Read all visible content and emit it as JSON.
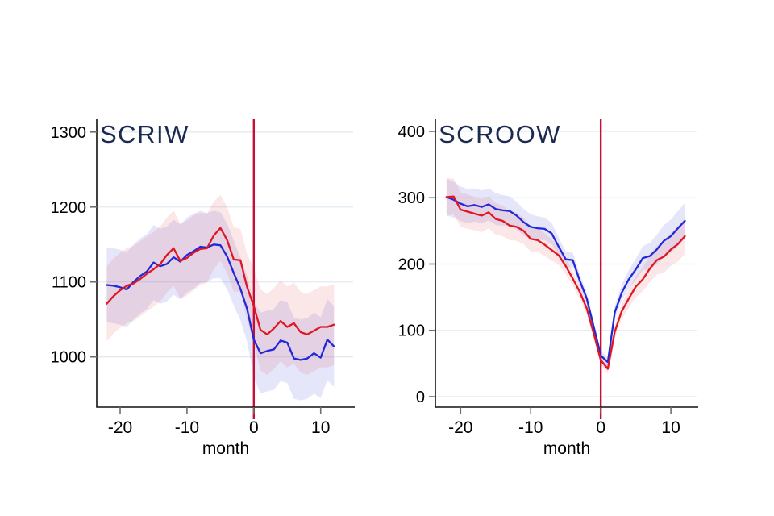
{
  "figure": {
    "background": "#ffffff",
    "axis_color": "#101010",
    "tick_color": "#6f6f6f",
    "label_color": "#000000"
  },
  "chart_data": [
    {
      "id": "scriw",
      "type": "line",
      "title": "SCRIW",
      "title_color": "#1c2951",
      "xlabel": "month",
      "grid": true,
      "grid_color": "#e2ebf2",
      "x": [
        -22,
        -21,
        -20,
        -19,
        -18,
        -17,
        -16,
        -15,
        -14,
        -13,
        -12,
        -11,
        -10,
        -9,
        -8,
        -7,
        -6,
        -5,
        -4,
        -3,
        -2,
        -1,
        0,
        1,
        2,
        3,
        4,
        5,
        6,
        7,
        8,
        9,
        10,
        11,
        12
      ],
      "series": [
        {
          "name": "blue-line",
          "color": "#2128d8",
          "band_color": "rgba(92,102,222,0.16)",
          "values": [
            1096,
            1095,
            1093,
            1090,
            1100,
            1108,
            1114,
            1126,
            1121,
            1124,
            1133,
            1127,
            1136,
            1141,
            1147,
            1146,
            1150,
            1149,
            1134,
            1112,
            1091,
            1064,
            1023,
            1005,
            1008,
            1010,
            1022,
            1019,
            998,
            996,
            998,
            1005,
            999,
            1023,
            1014
          ],
          "band_width": [
            50,
            50,
            50,
            50,
            50,
            50,
            50,
            50,
            50,
            50,
            50,
            50,
            50,
            50,
            48,
            46,
            45,
            44,
            44,
            43,
            42,
            44,
            50,
            54,
            54,
            54,
            54,
            54,
            54,
            54,
            54,
            54,
            54,
            54,
            54
          ]
        },
        {
          "name": "red-line",
          "color": "#e01622",
          "band_color": "rgba(233,105,120,0.17)",
          "values": [
            1071,
            1081,
            1089,
            1095,
            1098,
            1104,
            1111,
            1117,
            1124,
            1136,
            1145,
            1128,
            1132,
            1139,
            1144,
            1145,
            1162,
            1172,
            1156,
            1130,
            1129,
            1093,
            1068,
            1036,
            1030,
            1038,
            1048,
            1040,
            1045,
            1033,
            1030,
            1035,
            1040,
            1040,
            1043
          ],
          "band_width": [
            50,
            50,
            50,
            50,
            50,
            50,
            50,
            50,
            50,
            50,
            50,
            50,
            50,
            50,
            48,
            46,
            45,
            44,
            44,
            43,
            42,
            44,
            50,
            54,
            54,
            54,
            54,
            54,
            54,
            54,
            54,
            54,
            54,
            54,
            54
          ]
        }
      ],
      "vline": {
        "x": 0,
        "color": "#c40f38"
      },
      "yticks": [
        1000,
        1100,
        1200,
        1300
      ],
      "xticks": [
        -20,
        -10,
        0,
        10
      ],
      "ylim": [
        933,
        1317
      ],
      "xlim": [
        -23.5,
        15.1
      ],
      "legend": "none"
    },
    {
      "id": "scroow",
      "type": "line",
      "title": "SCROOW",
      "title_color": "#1c2951",
      "xlabel": "month",
      "grid": true,
      "grid_color": "#e2ebf2",
      "x": [
        -22,
        -21,
        -20,
        -19,
        -18,
        -17,
        -16,
        -15,
        -14,
        -13,
        -12,
        -11,
        -10,
        -9,
        -8,
        -7,
        -6,
        -5,
        -4,
        -3,
        -2,
        -1,
        0,
        1,
        2,
        3,
        4,
        5,
        6,
        7,
        8,
        9,
        10,
        11,
        12
      ],
      "series": [
        {
          "name": "blue-line",
          "color": "#2128d8",
          "band_color": "rgba(92,102,222,0.16)",
          "values": [
            301,
            297,
            291,
            287,
            289,
            286,
            290,
            283,
            281,
            280,
            273,
            263,
            256,
            254,
            253,
            246,
            226,
            207,
            206,
            175,
            148,
            105,
            62,
            52,
            127,
            157,
            177,
            192,
            209,
            212,
            222,
            235,
            242,
            254,
            265
          ],
          "band_width": [
            28,
            27,
            26,
            26,
            25,
            25,
            24,
            24,
            23,
            22,
            21,
            20,
            19,
            18,
            17,
            16,
            14,
            12,
            11,
            10,
            9,
            8,
            7,
            7,
            10,
            12,
            14,
            16,
            18,
            20,
            22,
            24,
            25,
            26,
            27
          ]
        },
        {
          "name": "red-line",
          "color": "#e01622",
          "band_color": "rgba(233,105,120,0.17)",
          "values": [
            301,
            302,
            282,
            279,
            276,
            273,
            278,
            268,
            265,
            258,
            256,
            250,
            238,
            236,
            229,
            221,
            213,
            197,
            178,
            158,
            133,
            95,
            55,
            42,
            98,
            129,
            148,
            166,
            177,
            193,
            206,
            211,
            222,
            230,
            242
          ],
          "band_width": [
            28,
            27,
            26,
            26,
            25,
            25,
            24,
            24,
            23,
            22,
            21,
            20,
            19,
            18,
            17,
            16,
            14,
            12,
            11,
            10,
            9,
            8,
            7,
            7,
            10,
            12,
            14,
            16,
            18,
            20,
            22,
            24,
            25,
            26,
            27
          ]
        }
      ],
      "vline": {
        "x": 0,
        "color": "#c40f38"
      },
      "yticks": [
        0,
        100,
        200,
        300,
        400
      ],
      "xticks": [
        -20,
        -10,
        0,
        10
      ],
      "ylim": [
        -15.8,
        418.2
      ],
      "xlim": [
        -23.6,
        13.9
      ],
      "legend": "none"
    }
  ]
}
